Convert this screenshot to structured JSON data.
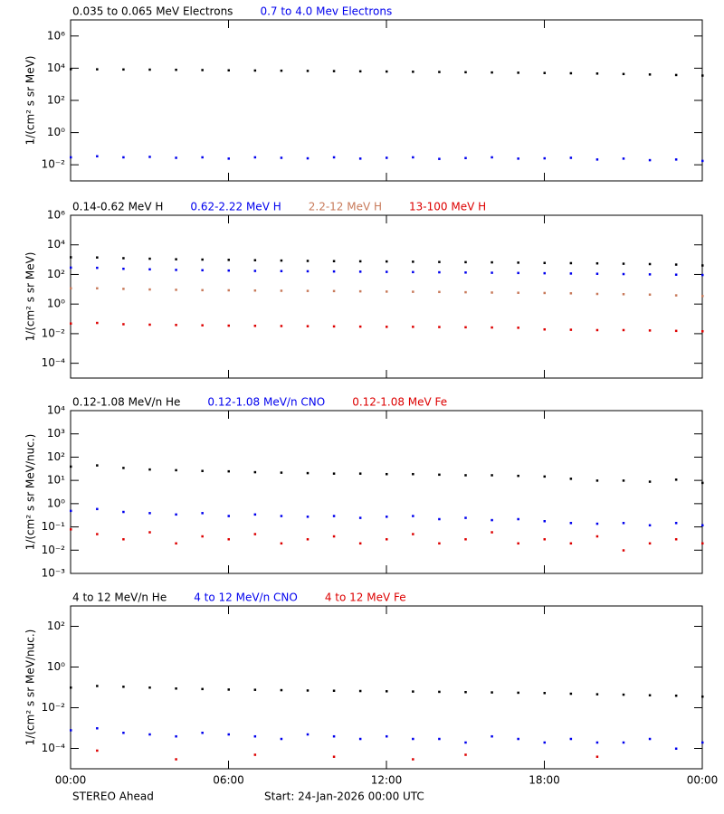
{
  "chart_data": [
    {
      "type": "scatter",
      "ylabel": "1/(cm² s sr MeV)",
      "log_y": true,
      "xlim": [
        0,
        24
      ],
      "xticks": [
        0,
        6,
        12,
        18,
        24
      ],
      "ylim": [
        0.001,
        10000000
      ],
      "yticks": [
        {
          "value": 0.01,
          "label": "10⁻²"
        },
        {
          "value": 1,
          "label": "10⁰"
        },
        {
          "value": 100,
          "label": "10²"
        },
        {
          "value": 10000,
          "label": "10⁴"
        },
        {
          "value": 1000000,
          "label": "10⁶"
        }
      ],
      "x": [
        0,
        1,
        2,
        3,
        4,
        5,
        6,
        7,
        8,
        9,
        10,
        11,
        12,
        13,
        14,
        15,
        16,
        17,
        18,
        19,
        20,
        21,
        22,
        23,
        24
      ],
      "series": [
        {
          "name": "0.035 to 0.065 MeV Electrons",
          "color": "#000000",
          "values": [
            9000,
            8800,
            8600,
            8400,
            8200,
            7900,
            7600,
            7400,
            7200,
            7000,
            6800,
            6600,
            6400,
            6200,
            6000,
            5800,
            5600,
            5400,
            5200,
            5000,
            4800,
            4500,
            4200,
            3900,
            3600
          ]
        },
        {
          "name": "0.7 to 4.0 Mev Electrons",
          "color": "#0000ee",
          "values": [
            0.03,
            0.035,
            0.03,
            0.032,
            0.028,
            0.03,
            0.025,
            0.03,
            0.028,
            0.026,
            0.03,
            0.025,
            0.028,
            0.03,
            0.024,
            0.027,
            0.03,
            0.025,
            0.026,
            0.028,
            0.022,
            0.025,
            0.02,
            0.022,
            0.018
          ]
        }
      ]
    },
    {
      "type": "scatter",
      "ylabel": "1/(cm² s sr MeV)",
      "log_y": true,
      "xlim": [
        0,
        24
      ],
      "xticks": [
        0,
        6,
        12,
        18,
        24
      ],
      "ylim": [
        1e-05,
        1000000
      ],
      "yticks": [
        {
          "value": 0.0001,
          "label": "10⁻⁴"
        },
        {
          "value": 0.01,
          "label": "10⁻²"
        },
        {
          "value": 1,
          "label": "10⁰"
        },
        {
          "value": 100,
          "label": "10²"
        },
        {
          "value": 10000,
          "label": "10⁴"
        },
        {
          "value": 1000000,
          "label": "10⁶"
        }
      ],
      "x": [
        0,
        1,
        2,
        3,
        4,
        5,
        6,
        7,
        8,
        9,
        10,
        11,
        12,
        13,
        14,
        15,
        16,
        17,
        18,
        19,
        20,
        21,
        22,
        23,
        24
      ],
      "series": [
        {
          "name": "0.14-0.62 MeV H",
          "color": "#000000",
          "values": [
            1500,
            1450,
            1300,
            1200,
            1100,
            1050,
            1000,
            950,
            900,
            850,
            820,
            800,
            780,
            750,
            720,
            700,
            680,
            650,
            620,
            600,
            580,
            550,
            520,
            480,
            420
          ]
        },
        {
          "name": "0.62-2.22 MeV H",
          "color": "#0000ee",
          "values": [
            300,
            290,
            250,
            230,
            210,
            200,
            190,
            180,
            175,
            170,
            165,
            160,
            155,
            150,
            145,
            140,
            135,
            130,
            125,
            120,
            115,
            110,
            105,
            100,
            95
          ]
        },
        {
          "name": "2.2-12 MeV H",
          "color": "#c87a5a",
          "values": [
            12,
            12,
            11,
            10,
            9.5,
            9,
            8.8,
            8.5,
            8.2,
            8,
            7.8,
            7.5,
            7.2,
            7,
            6.8,
            6.5,
            6.2,
            6,
            5.8,
            5.5,
            5,
            4.8,
            4.5,
            4,
            3.6
          ]
        },
        {
          "name": "13-100 MeV H",
          "color": "#dd0000",
          "values": [
            0.05,
            0.055,
            0.045,
            0.042,
            0.04,
            0.038,
            0.036,
            0.035,
            0.034,
            0.033,
            0.032,
            0.031,
            0.03,
            0.03,
            0.029,
            0.028,
            0.027,
            0.026,
            0.02,
            0.019,
            0.018,
            0.018,
            0.017,
            0.016,
            0.015
          ]
        }
      ]
    },
    {
      "type": "scatter",
      "ylabel": "1/(cm² s sr MeV/nuc.)",
      "log_y": true,
      "xlim": [
        0,
        24
      ],
      "xticks": [
        0,
        6,
        12,
        18,
        24
      ],
      "ylim": [
        0.001,
        10000
      ],
      "yticks": [
        {
          "value": 0.001,
          "label": "10⁻³"
        },
        {
          "value": 0.01,
          "label": "10⁻²"
        },
        {
          "value": 0.1,
          "label": "10⁻¹"
        },
        {
          "value": 1,
          "label": "10⁰"
        },
        {
          "value": 10,
          "label": "10¹"
        },
        {
          "value": 100,
          "label": "10²"
        },
        {
          "value": 1000,
          "label": "10³"
        },
        {
          "value": 10000,
          "label": "10⁴"
        }
      ],
      "x": [
        0,
        1,
        2,
        3,
        4,
        5,
        6,
        7,
        8,
        9,
        10,
        11,
        12,
        13,
        14,
        15,
        16,
        17,
        18,
        19,
        20,
        21,
        22,
        23,
        24
      ],
      "series": [
        {
          "name": "0.12-1.08 MeV/n He",
          "color": "#000000",
          "values": [
            40,
            45,
            35,
            30,
            28,
            26,
            25,
            23,
            22,
            21,
            20,
            20,
            19,
            19,
            18,
            17,
            17,
            16,
            15,
            12,
            10,
            10,
            9,
            11,
            8
          ]
        },
        {
          "name": "0.12-1.08 MeV/n CNO",
          "color": "#0000ee",
          "values": [
            0.5,
            0.6,
            0.45,
            0.4,
            0.35,
            0.4,
            0.3,
            0.35,
            0.3,
            0.28,
            0.3,
            0.25,
            0.28,
            0.3,
            0.22,
            0.25,
            0.2,
            0.22,
            0.18,
            0.15,
            0.14,
            0.15,
            0.12,
            0.15,
            0.12
          ]
        },
        {
          "name": "0.12-1.08 MeV Fe",
          "color": "#dd0000",
          "values": [
            0.08,
            0.05,
            0.03,
            0.06,
            0.02,
            0.04,
            0.03,
            0.05,
            0.02,
            0.03,
            0.04,
            0.02,
            0.03,
            0.05,
            0.02,
            0.03,
            0.06,
            0.02,
            0.03,
            0.02,
            0.04,
            0.01,
            0.02,
            0.03,
            0.02
          ]
        }
      ]
    },
    {
      "type": "scatter",
      "ylabel": "1/(cm² s sr MeV/nuc.)",
      "log_y": true,
      "xlim": [
        0,
        24
      ],
      "xticks": [
        {
          "value": 0,
          "label": "00:00"
        },
        {
          "value": 6,
          "label": "06:00"
        },
        {
          "value": 12,
          "label": "12:00"
        },
        {
          "value": 18,
          "label": "18:00"
        },
        {
          "value": 24,
          "label": "00:00"
        }
      ],
      "ylim": [
        1e-05,
        1000
      ],
      "yticks": [
        {
          "value": 0.0001,
          "label": "10⁻⁴"
        },
        {
          "value": 0.01,
          "label": "10⁻²"
        },
        {
          "value": 1,
          "label": "10⁰"
        },
        {
          "value": 100,
          "label": "10²"
        }
      ],
      "x": [
        0,
        1,
        2,
        3,
        4,
        5,
        6,
        7,
        8,
        9,
        10,
        11,
        12,
        13,
        14,
        15,
        16,
        17,
        18,
        19,
        20,
        21,
        22,
        23,
        24
      ],
      "series": [
        {
          "name": "4 to 12 MeV/n He",
          "color": "#000000",
          "values": [
            0.1,
            0.12,
            0.11,
            0.1,
            0.09,
            0.085,
            0.08,
            0.078,
            0.075,
            0.072,
            0.07,
            0.068,
            0.066,
            0.064,
            0.062,
            0.06,
            0.058,
            0.056,
            0.054,
            0.05,
            0.047,
            0.045,
            0.042,
            0.04,
            0.036
          ]
        },
        {
          "name": "4 to 12 MeV/n CNO",
          "color": "#0000ee",
          "values": [
            0.0008,
            0.001,
            0.0006,
            0.0005,
            0.0004,
            0.0006,
            0.0005,
            0.0004,
            0.0003,
            0.0005,
            0.0004,
            0.0003,
            0.0004,
            0.0003,
            0.0003,
            0.0002,
            0.0004,
            0.0003,
            0.0002,
            0.0003,
            0.0002,
            0.0002,
            0.0003,
            0.0001,
            0.0002
          ]
        },
        {
          "name": "4 to 12 MeV Fe",
          "color": "#dd0000",
          "values": [
            null,
            8e-05,
            null,
            null,
            3e-05,
            null,
            null,
            5e-05,
            null,
            null,
            4e-05,
            null,
            null,
            3e-05,
            null,
            5e-05,
            null,
            null,
            null,
            null,
            4e-05,
            null,
            null,
            null,
            null
          ]
        }
      ]
    }
  ],
  "footer": {
    "left": "STEREO Ahead",
    "center": "Start: 24-Jan-2026 00:00 UTC"
  }
}
